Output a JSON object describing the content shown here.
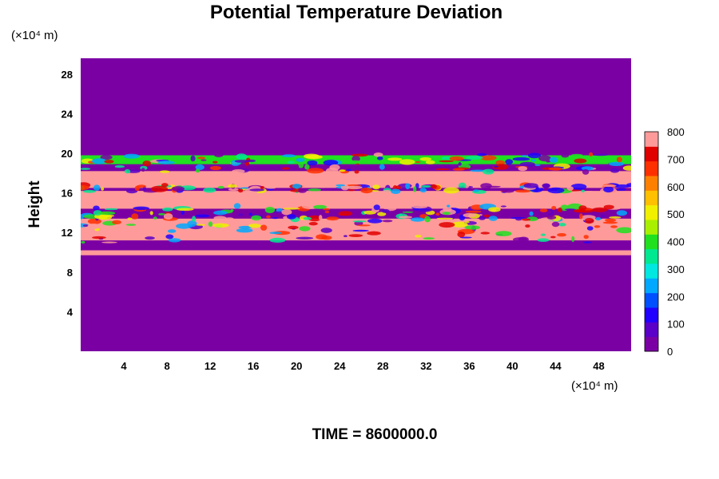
{
  "chart_data": {
    "type": "heatmap",
    "title": "Potential Temperature Deviation",
    "ylabel": "Height",
    "y_unit_label": "(×10⁴ m)",
    "x_unit_label": "(×10⁴ m)",
    "x_ticks": [
      4,
      8,
      12,
      16,
      20,
      24,
      28,
      32,
      36,
      40,
      44,
      48
    ],
    "y_ticks": [
      4,
      8,
      12,
      16,
      20,
      24,
      28
    ],
    "xlim": [
      0,
      51
    ],
    "ylim": [
      0,
      29.6
    ],
    "colorbar": {
      "min": 0,
      "max": 800,
      "ticks": [
        0,
        100,
        200,
        300,
        400,
        500,
        600,
        700,
        800
      ],
      "colors": [
        "#7b00a4",
        "#5a00c8",
        "#2000ff",
        "#0050ff",
        "#00a8ff",
        "#00e8e0",
        "#00e890",
        "#20e020",
        "#a8f000",
        "#f0f000",
        "#ffc000",
        "#ff8000",
        "#ff3000",
        "#e00000",
        "#ff9a9a"
      ]
    },
    "bands": [
      {
        "y0": 9.7,
        "y1": 10.2,
        "value": 800
      },
      {
        "y0": 11.2,
        "y1": 13.4,
        "value": 800
      },
      {
        "y0": 14.4,
        "y1": 16.2,
        "value": 800
      },
      {
        "y0": 16.5,
        "y1": 18.2,
        "value": 800
      },
      {
        "y0": 18.9,
        "y1": 19.8,
        "value": 400
      }
    ],
    "grid": false
  },
  "footer": {
    "time_text": "TIME = 8600000.0"
  }
}
